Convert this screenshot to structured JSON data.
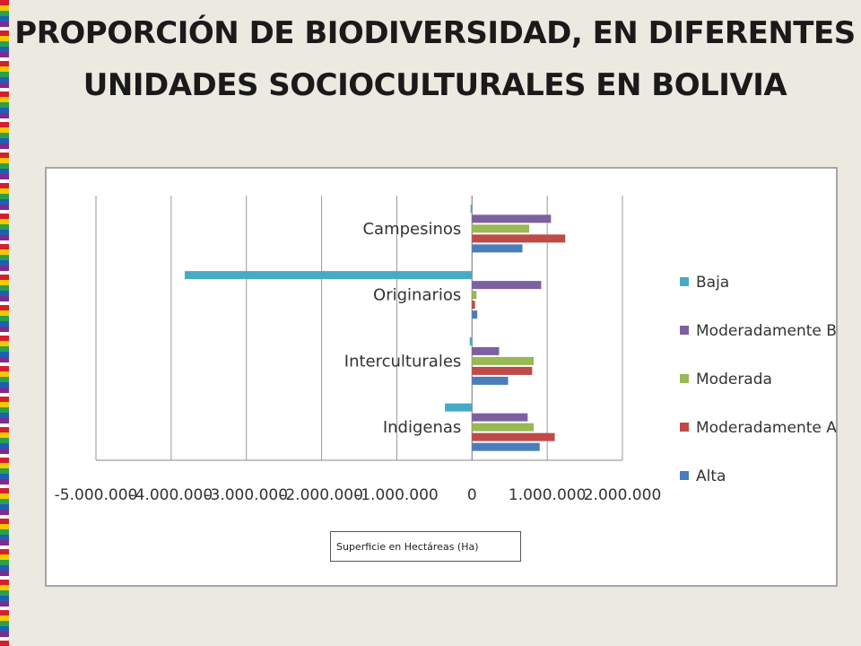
{
  "title": "PROPORCIÓN DE BIODIVERSIDAD, EN DIFERENTES UNIDADES SOCIOCULTURALES EN BOLIVIA",
  "colors": {
    "Alta": "#4a7ebb",
    "Moderadamente Alta": "#be4b48",
    "Moderada": "#98b954",
    "Moderadamente Baja": "#7d60a0",
    "Baja": "#46aac5"
  },
  "chart_data": {
    "type": "bar",
    "orientation": "horizontal",
    "categories": [
      "Indigenas",
      "Interculturales",
      "Originarios",
      "Campesinos"
    ],
    "series": [
      {
        "name": "Alta",
        "values": [
          900000,
          480000,
          70000,
          670000
        ]
      },
      {
        "name": "Moderadamente Alta",
        "values": [
          1100000,
          800000,
          40000,
          1240000
        ]
      },
      {
        "name": "Moderada",
        "values": [
          820000,
          820000,
          60000,
          760000
        ]
      },
      {
        "name": "Moderadamente Baja",
        "values": [
          740000,
          360000,
          920000,
          1050000
        ]
      },
      {
        "name": "Baja",
        "values": [
          -360000,
          -30000,
          -3820000,
          -20000
        ]
      }
    ],
    "xlim": [
      -5000000,
      2000000
    ],
    "xticks": [
      -5000000,
      -4000000,
      -3000000,
      -2000000,
      -1000000,
      0,
      1000000,
      2000000
    ],
    "xtick_labels": [
      "-5.000.000",
      "-4.000.000",
      "-3.000.000",
      "-2.000.000",
      "-1.000.000",
      "0",
      "1.000.000",
      "2.000.000"
    ],
    "grid": "vertical",
    "legend_position": "right",
    "legend": [
      "Baja",
      "Moderadamente Baja",
      "Moderada",
      "Moderadamente Alta",
      "Alta"
    ],
    "xlabel": "Superficie en Hectáreas (Ha)",
    "ylabel": ""
  }
}
